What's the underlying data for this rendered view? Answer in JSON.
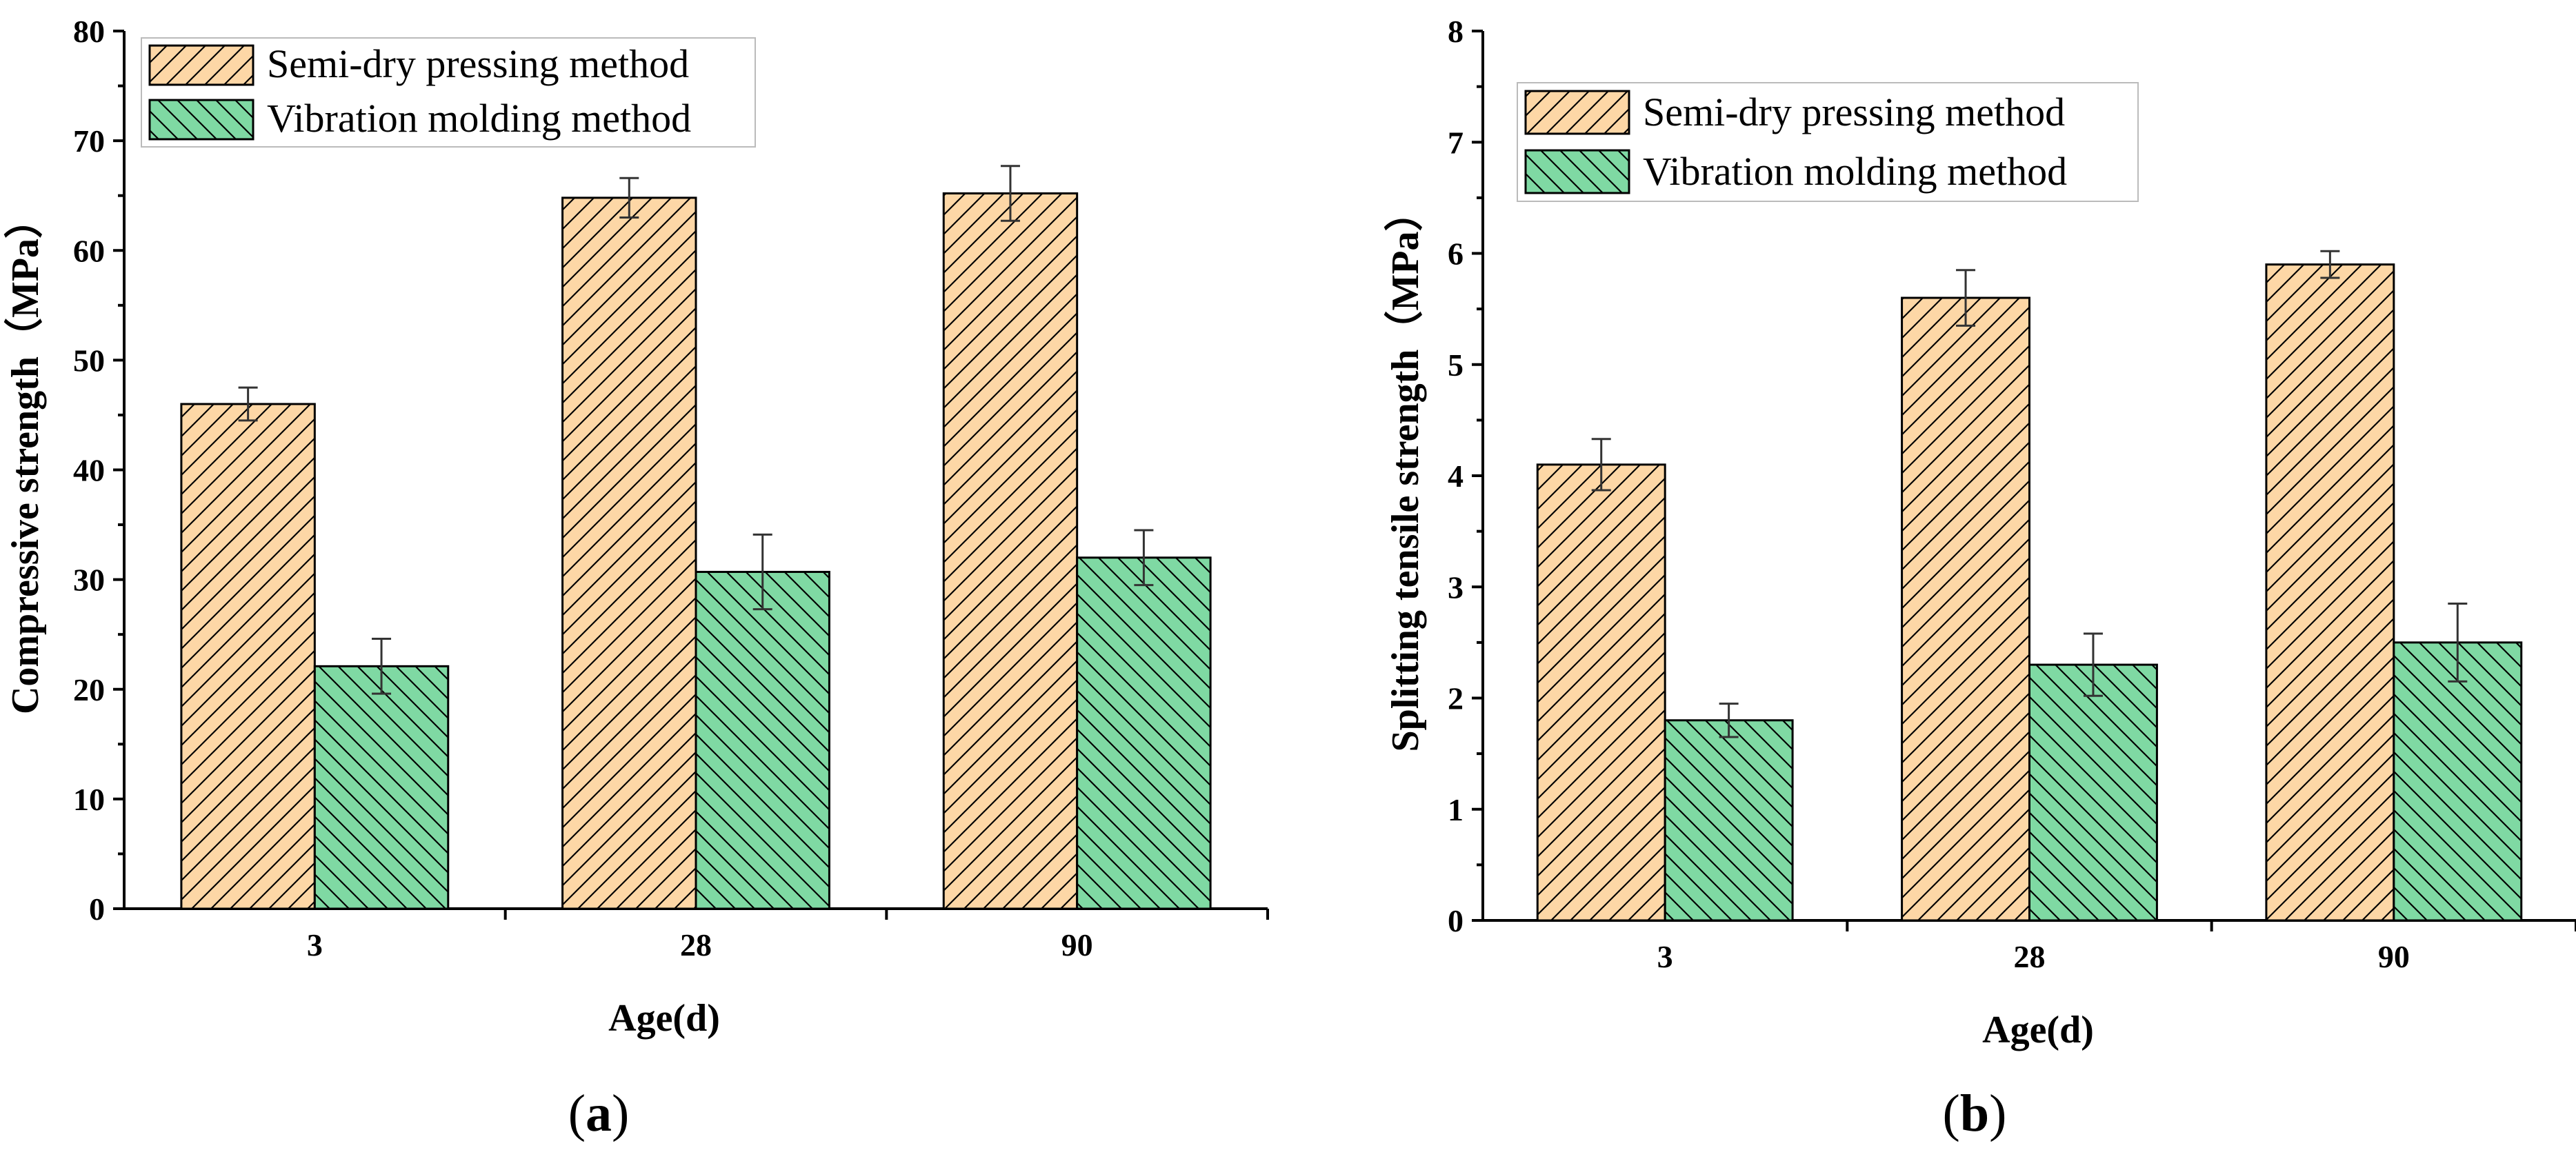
{
  "colors": {
    "semi_dry": "#FDD7A6",
    "vibration": "#7FD9A3",
    "hatch": "#000000"
  },
  "chart_data": [
    {
      "type": "bar",
      "panel_label": "a",
      "categories": [
        "3",
        "28",
        "90"
      ],
      "series": [
        {
          "name": "Semi-dry pressing method",
          "values": [
            46.0,
            64.8,
            65.2
          ],
          "errors": [
            1.5,
            1.8,
            2.5
          ],
          "hatch": "forward"
        },
        {
          "name": "Vibration molding method",
          "values": [
            22.1,
            30.7,
            32.0
          ],
          "errors": [
            2.5,
            3.4,
            2.5
          ],
          "hatch": "backward"
        }
      ],
      "xlabel": "Age(d)",
      "ylabel": "Compressive strength（MPa）",
      "ylim": [
        0,
        80
      ],
      "yticks": [
        "0",
        "10",
        "20",
        "30",
        "40",
        "50",
        "60",
        "70",
        "80"
      ],
      "legend_position": "top-left",
      "grid": false
    },
    {
      "type": "bar",
      "panel_label": "b",
      "categories": [
        "3",
        "28",
        "90"
      ],
      "series": [
        {
          "name": "Semi-dry pressing method",
          "values": [
            4.1,
            5.6,
            5.9
          ],
          "errors": [
            0.23,
            0.25,
            0.12
          ],
          "hatch": "forward"
        },
        {
          "name": "Vibration molding method",
          "values": [
            1.8,
            2.3,
            2.5
          ],
          "errors": [
            0.15,
            0.28,
            0.35
          ],
          "hatch": "backward"
        }
      ],
      "xlabel": "Age(d)",
      "ylabel": "Splitting tensile strength（MPa）",
      "ylim": [
        0,
        8
      ],
      "yticks": [
        "0",
        "1",
        "2",
        "3",
        "4",
        "5",
        "6",
        "7",
        "8"
      ],
      "legend_position": "top-left",
      "grid": false
    }
  ]
}
